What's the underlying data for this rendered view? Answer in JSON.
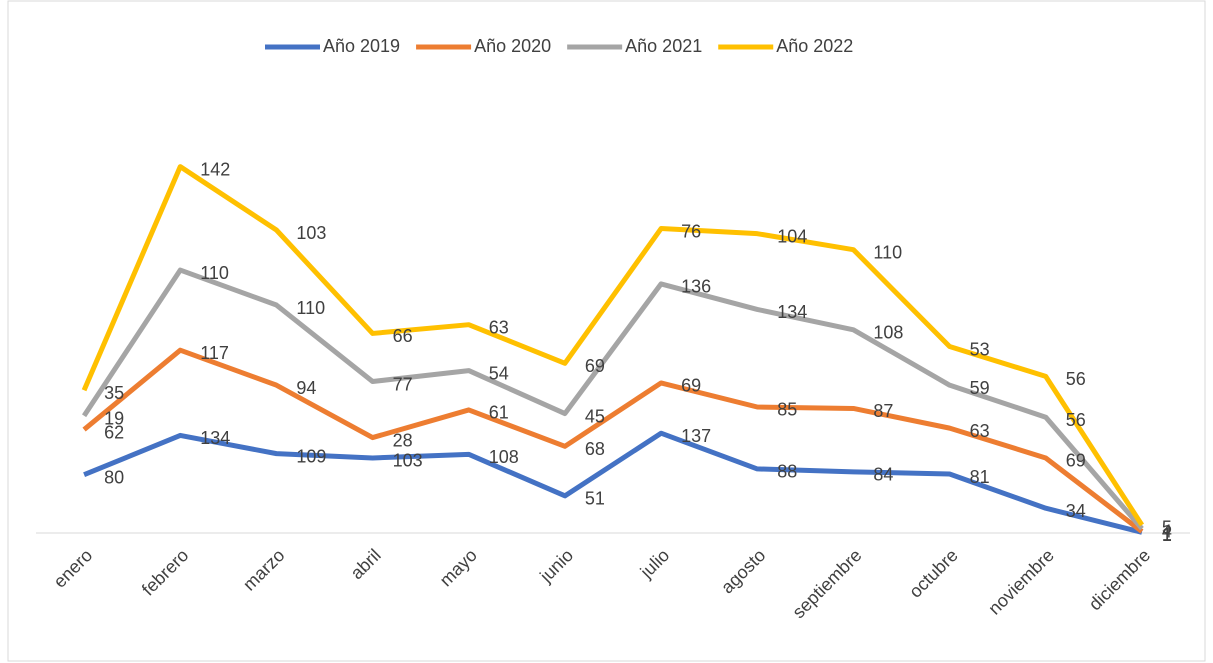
{
  "chart_data": {
    "type": "line",
    "stacked": true,
    "categories": [
      "enero",
      "febrero",
      "marzo",
      "abril",
      "mayo",
      "junio",
      "julio",
      "agosto",
      "septiembre",
      "octubre",
      "noviembre",
      "diciembre"
    ],
    "series": [
      {
        "name": "Año 2019",
        "color": "#4472c4",
        "values": [
          80,
          134,
          109,
          103,
          108,
          51,
          137,
          88,
          84,
          81,
          34,
          1
        ]
      },
      {
        "name": "Año 2020",
        "color": "#ed7d31",
        "values": [
          62,
          117,
          94,
          28,
          61,
          68,
          69,
          85,
          87,
          63,
          69,
          1
        ]
      },
      {
        "name": "Año 2021",
        "color": "#a5a5a5",
        "values": [
          19,
          110,
          110,
          77,
          54,
          45,
          136,
          134,
          108,
          59,
          56,
          4
        ]
      },
      {
        "name": "Año 2022",
        "color": "#ffc000",
        "values": [
          35,
          142,
          103,
          66,
          63,
          69,
          76,
          104,
          110,
          53,
          56,
          5
        ]
      }
    ],
    "ylim": [
      0,
      600
    ],
    "legend": "top",
    "data_labels": true
  }
}
